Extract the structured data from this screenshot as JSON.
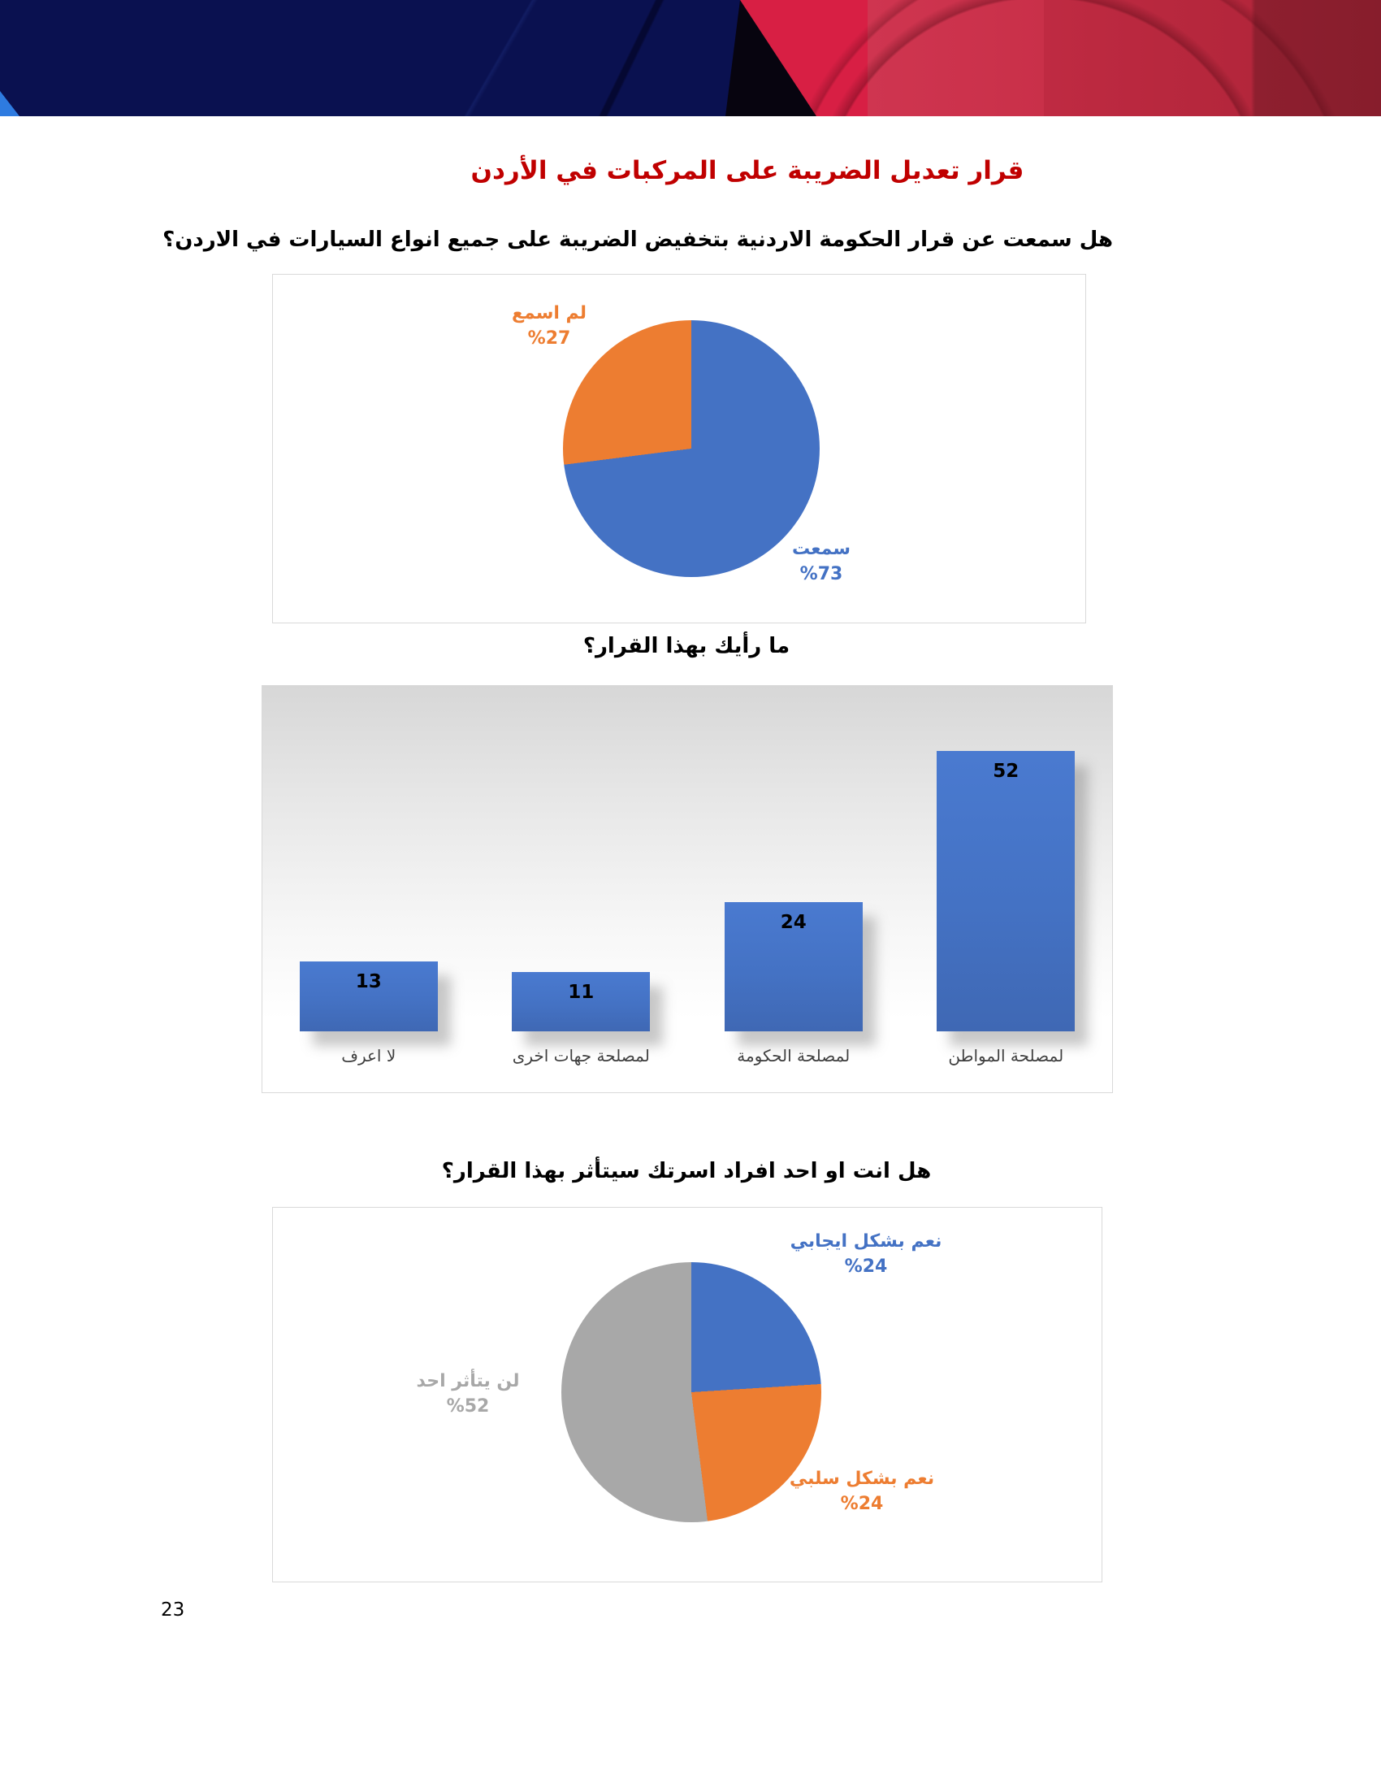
{
  "page_number": "23",
  "title": "قرار تعديل الضريبة على المركبات في الأردن",
  "questions": {
    "q1": "هل سمعت عن قرار الحكومة الاردنية بتخفيض الضريبة على جميع انواع السيارات في الاردن؟",
    "q2": "ما رأيك بهذا القرار؟",
    "q3": "هل انت او احد افراد اسرتك سيتأثر بهذا القرار؟"
  },
  "colors": {
    "title_red": "#C00000",
    "accent_blue": "#4472C4",
    "accent_orange": "#ED7D31",
    "accent_gray": "#A6A6A6",
    "banner_navy": "#0A1150",
    "banner_red": "#D81F44"
  },
  "chart_data": [
    {
      "type": "pie",
      "title": "هل سمعت عن قرار الحكومة الاردنية بتخفيض الضريبة على جميع انواع السيارات في الاردن؟",
      "unit": "%",
      "slices": [
        {
          "label": "سمعت",
          "value": 73,
          "pct_label": "%73",
          "color": "#4472C4"
        },
        {
          "label": "لم اسمع",
          "value": 27,
          "pct_label": "%27",
          "color": "#ED7D31"
        }
      ],
      "layout": {
        "start_angle_deg": 0,
        "clockwise": true,
        "labels": "outside"
      }
    },
    {
      "type": "bar",
      "title": "ما رأيك بهذا القرار؟",
      "categories": [
        "لمصلحة المواطن",
        "لمصلحة الحكومة",
        "لمصلحة جهات اخرى",
        "لا اعرف"
      ],
      "values": [
        52,
        24,
        11,
        13
      ],
      "bar_color": "#4472C4",
      "xlabel": "",
      "ylabel": "",
      "ylim": [
        0,
        64
      ],
      "layout": {
        "rtl": true,
        "grid": false,
        "data_labels": "inside-top",
        "background": "gray-gradient"
      }
    },
    {
      "type": "pie",
      "title": "هل انت او احد افراد اسرتك سيتأثر بهذا القرار؟",
      "unit": "%",
      "slices": [
        {
          "label": "نعم بشكل ايجابي",
          "value": 24,
          "pct_label": "%24",
          "color": "#4472C4"
        },
        {
          "label": "نعم بشكل سلبي",
          "value": 24,
          "pct_label": "%24",
          "color": "#ED7D31"
        },
        {
          "label": "لن يتأثر احد",
          "value": 52,
          "pct_label": "%52",
          "color": "#A8A8A8"
        }
      ],
      "layout": {
        "start_angle_deg": 0,
        "clockwise": true,
        "labels": "outside"
      }
    }
  ]
}
